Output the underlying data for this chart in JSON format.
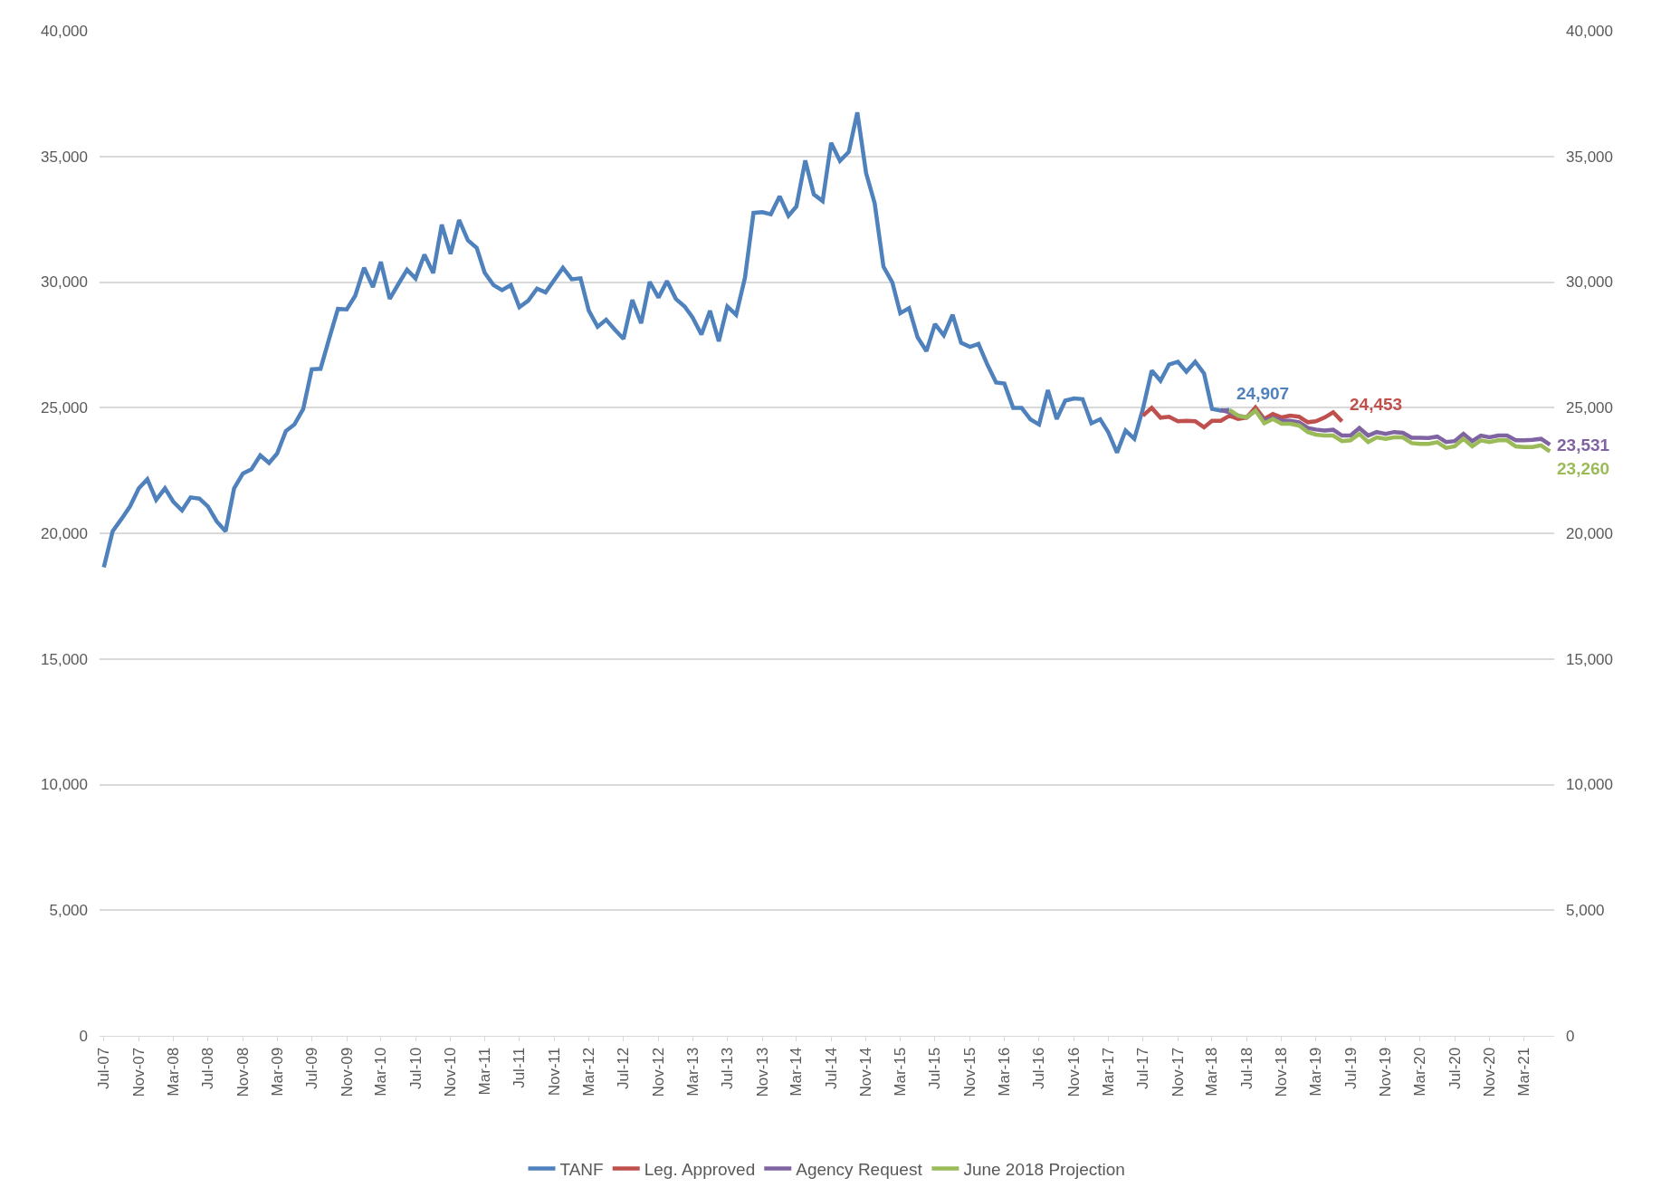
{
  "chart_data": {
    "type": "line",
    "x": [
      "2007-07",
      "2007-08",
      "2007-09",
      "2007-10",
      "2007-11",
      "2007-12",
      "2008-01",
      "2008-02",
      "2008-03",
      "2008-04",
      "2008-05",
      "2008-06",
      "2008-07",
      "2008-08",
      "2008-09",
      "2008-10",
      "2008-11",
      "2008-12",
      "2009-01",
      "2009-02",
      "2009-03",
      "2009-04",
      "2009-05",
      "2009-06",
      "2009-07",
      "2009-08",
      "2009-09",
      "2009-10",
      "2009-11",
      "2009-12",
      "2010-01",
      "2010-02",
      "2010-03",
      "2010-04",
      "2010-05",
      "2010-06",
      "2010-07",
      "2010-08",
      "2010-09",
      "2010-10",
      "2010-11",
      "2010-12",
      "2011-01",
      "2011-02",
      "2011-03",
      "2011-04",
      "2011-05",
      "2011-06",
      "2011-07",
      "2011-08",
      "2011-09",
      "2011-10",
      "2011-11",
      "2011-12",
      "2012-01",
      "2012-02",
      "2012-03",
      "2012-04",
      "2012-05",
      "2012-06",
      "2012-07",
      "2012-08",
      "2012-09",
      "2012-10",
      "2012-11",
      "2012-12",
      "2013-01",
      "2013-02",
      "2013-03",
      "2013-04",
      "2013-05",
      "2013-06",
      "2013-07",
      "2013-08",
      "2013-09",
      "2013-10",
      "2013-11",
      "2013-12",
      "2014-01",
      "2014-02",
      "2014-03",
      "2014-04",
      "2014-05",
      "2014-06",
      "2014-07",
      "2014-08",
      "2014-09",
      "2014-10",
      "2014-11",
      "2014-12",
      "2015-01",
      "2015-02",
      "2015-03",
      "2015-04",
      "2015-05",
      "2015-06",
      "2015-07",
      "2015-08",
      "2015-09",
      "2015-10",
      "2015-11",
      "2015-12",
      "2016-01",
      "2016-02",
      "2016-03",
      "2016-04",
      "2016-05",
      "2016-06",
      "2016-07",
      "2016-08",
      "2016-09",
      "2016-10",
      "2016-11",
      "2016-12",
      "2017-01",
      "2017-02",
      "2017-03",
      "2017-04",
      "2017-05",
      "2017-06",
      "2017-07",
      "2017-08",
      "2017-09",
      "2017-10",
      "2017-11",
      "2017-12",
      "2018-01",
      "2018-02",
      "2018-03",
      "2018-04",
      "2018-05",
      "2018-06",
      "2018-07",
      "2018-08",
      "2018-09",
      "2018-10",
      "2018-11",
      "2018-12",
      "2019-01",
      "2019-02",
      "2019-03",
      "2019-04",
      "2019-05",
      "2019-06",
      "2019-07",
      "2019-08",
      "2019-09",
      "2019-10",
      "2019-11",
      "2019-12",
      "2020-01",
      "2020-02",
      "2020-03",
      "2020-04",
      "2020-05",
      "2020-06",
      "2020-07",
      "2020-08",
      "2020-09",
      "2020-10",
      "2020-11",
      "2020-12",
      "2021-01",
      "2021-02",
      "2021-03",
      "2021-04",
      "2021-05",
      "2021-06"
    ],
    "series": [
      {
        "name": "TANF",
        "color": "#4f81bd",
        "values": [
          18650,
          20080,
          20570,
          21070,
          21790,
          22150,
          21330,
          21790,
          21260,
          20910,
          21430,
          21380,
          21070,
          20470,
          20080,
          21790,
          22380,
          22550,
          23100,
          22800,
          23170,
          24070,
          24330,
          24950,
          26530,
          26550,
          27780,
          28930,
          28910,
          29460,
          30570,
          29800,
          30800,
          29330,
          29910,
          30490,
          30140,
          31090,
          30360,
          32280,
          31120,
          32470,
          31660,
          31360,
          30370,
          29880,
          29680,
          29880,
          29000,
          29260,
          29740,
          29590,
          30090,
          30570,
          30110,
          30150,
          28860,
          28220,
          28500,
          28100,
          27740,
          29290,
          28360,
          30010,
          29380,
          30040,
          29330,
          29030,
          28590,
          27910,
          28860,
          27640,
          29030,
          28700,
          30170,
          32750,
          32780,
          32700,
          33410,
          32640,
          33010,
          34840,
          33490,
          33220,
          35540,
          34820,
          35180,
          36750,
          34330,
          33140,
          30610,
          29990,
          28760,
          28960,
          27800,
          27250,
          28330,
          27880,
          28700,
          27580,
          27420,
          27540,
          26720,
          26000,
          25960,
          24990,
          24990,
          24530,
          24330,
          25700,
          24550,
          25280,
          25370,
          25340,
          24380,
          24540,
          24030,
          23210,
          24090,
          23760,
          24950,
          26480,
          26070,
          26720,
          26830,
          26430,
          26830,
          26360,
          24950,
          24880,
          24907,
          null,
          null,
          null,
          null,
          null,
          null,
          null,
          null,
          null,
          null,
          null,
          null,
          null,
          null,
          null,
          null,
          null,
          null,
          null,
          null,
          null,
          null,
          null,
          null,
          null,
          null,
          null,
          null,
          null,
          null,
          null,
          null,
          null,
          null,
          null,
          null,
          null
        ]
      },
      {
        "name": "Leg. Approved",
        "color": "#c0504d",
        "values": [
          null,
          null,
          null,
          null,
          null,
          null,
          null,
          null,
          null,
          null,
          null,
          null,
          null,
          null,
          null,
          null,
          null,
          null,
          null,
          null,
          null,
          null,
          null,
          null,
          null,
          null,
          null,
          null,
          null,
          null,
          null,
          null,
          null,
          null,
          null,
          null,
          null,
          null,
          null,
          null,
          null,
          null,
          null,
          null,
          null,
          null,
          null,
          null,
          null,
          null,
          null,
          null,
          null,
          null,
          null,
          null,
          null,
          null,
          null,
          null,
          null,
          null,
          null,
          null,
          null,
          null,
          null,
          null,
          null,
          null,
          null,
          null,
          null,
          null,
          null,
          null,
          null,
          null,
          null,
          null,
          null,
          null,
          null,
          null,
          null,
          null,
          null,
          null,
          null,
          null,
          null,
          null,
          null,
          null,
          null,
          null,
          null,
          null,
          null,
          null,
          null,
          null,
          null,
          null,
          null,
          null,
          null,
          null,
          null,
          null,
          null,
          null,
          null,
          null,
          null,
          null,
          null,
          null,
          null,
          null,
          24680,
          24990,
          24600,
          24640,
          24460,
          24480,
          24460,
          24220,
          24480,
          24480,
          24680,
          24550,
          24610,
          25010,
          24550,
          24750,
          24610,
          24680,
          24640,
          24420,
          24460,
          24610,
          24820,
          24453,
          null,
          null,
          null,
          null,
          null,
          null,
          null,
          null,
          null,
          null,
          null,
          null,
          null,
          null,
          null,
          null,
          null,
          null,
          null,
          null,
          null,
          null,
          null,
          null
        ]
      },
      {
        "name": "Agency Request",
        "color": "#8064a2",
        "values": [
          null,
          null,
          null,
          null,
          null,
          null,
          null,
          null,
          null,
          null,
          null,
          null,
          null,
          null,
          null,
          null,
          null,
          null,
          null,
          null,
          null,
          null,
          null,
          null,
          null,
          null,
          null,
          null,
          null,
          null,
          null,
          null,
          null,
          null,
          null,
          null,
          null,
          null,
          null,
          null,
          null,
          null,
          null,
          null,
          null,
          null,
          null,
          null,
          null,
          null,
          null,
          null,
          null,
          null,
          null,
          null,
          null,
          null,
          null,
          null,
          null,
          null,
          null,
          null,
          null,
          null,
          null,
          null,
          null,
          null,
          null,
          null,
          null,
          null,
          null,
          null,
          null,
          null,
          null,
          null,
          null,
          null,
          null,
          null,
          null,
          null,
          null,
          null,
          null,
          null,
          null,
          null,
          null,
          null,
          null,
          null,
          null,
          null,
          null,
          null,
          null,
          null,
          null,
          null,
          null,
          null,
          null,
          null,
          null,
          null,
          null,
          null,
          null,
          null,
          null,
          null,
          null,
          null,
          null,
          null,
          null,
          null,
          null,
          null,
          null,
          null,
          null,
          null,
          null,
          24910,
          24820,
          24680,
          24610,
          24880,
          24480,
          24590,
          24480,
          24480,
          24420,
          24190,
          24130,
          24090,
          24120,
          23890,
          23890,
          24190,
          23890,
          24030,
          23960,
          24030,
          24000,
          23800,
          23800,
          23790,
          23850,
          23630,
          23670,
          23960,
          23670,
          23890,
          23820,
          23890,
          23890,
          23700,
          23700,
          23720,
          23760,
          23531
        ]
      },
      {
        "name": "June 2018 Projection",
        "color": "#9bbb59",
        "values": [
          null,
          null,
          null,
          null,
          null,
          null,
          null,
          null,
          null,
          null,
          null,
          null,
          null,
          null,
          null,
          null,
          null,
          null,
          null,
          null,
          null,
          null,
          null,
          null,
          null,
          null,
          null,
          null,
          null,
          null,
          null,
          null,
          null,
          null,
          null,
          null,
          null,
          null,
          null,
          null,
          null,
          null,
          null,
          null,
          null,
          null,
          null,
          null,
          null,
          null,
          null,
          null,
          null,
          null,
          null,
          null,
          null,
          null,
          null,
          null,
          null,
          null,
          null,
          null,
          null,
          null,
          null,
          null,
          null,
          null,
          null,
          null,
          null,
          null,
          null,
          null,
          null,
          null,
          null,
          null,
          null,
          null,
          null,
          null,
          null,
          null,
          null,
          null,
          null,
          null,
          null,
          null,
          null,
          null,
          null,
          null,
          null,
          null,
          null,
          null,
          null,
          null,
          null,
          null,
          null,
          null,
          null,
          null,
          null,
          null,
          null,
          null,
          null,
          null,
          null,
          null,
          null,
          null,
          null,
          null,
          null,
          null,
          null,
          null,
          null,
          null,
          null,
          null,
          null,
          null,
          24910,
          24680,
          24610,
          24880,
          24380,
          24550,
          24360,
          24360,
          24290,
          24030,
          23930,
          23890,
          23890,
          23670,
          23700,
          23960,
          23630,
          23820,
          23760,
          23820,
          23820,
          23590,
          23560,
          23560,
          23630,
          23400,
          23460,
          23760,
          23460,
          23700,
          23630,
          23700,
          23700,
          23460,
          23430,
          23430,
          23500,
          23260
        ]
      }
    ],
    "xlim": [
      "2007-06-16",
      "2021-06-16"
    ],
    "xticks": [
      {
        "value": "2007-07",
        "label": "Jul-07"
      },
      {
        "value": "2007-11",
        "label": "Nov-07"
      },
      {
        "value": "2008-03",
        "label": "Mar-08"
      },
      {
        "value": "2008-07",
        "label": "Jul-08"
      },
      {
        "value": "2008-11",
        "label": "Nov-08"
      },
      {
        "value": "2009-03",
        "label": "Mar-09"
      },
      {
        "value": "2009-07",
        "label": "Jul-09"
      },
      {
        "value": "2009-11",
        "label": "Nov-09"
      },
      {
        "value": "2010-03",
        "label": "Mar-10"
      },
      {
        "value": "2010-07",
        "label": "Jul-10"
      },
      {
        "value": "2010-11",
        "label": "Nov-10"
      },
      {
        "value": "2011-03",
        "label": "Mar-11"
      },
      {
        "value": "2011-07",
        "label": "Jul-11"
      },
      {
        "value": "2011-11",
        "label": "Nov-11"
      },
      {
        "value": "2012-03",
        "label": "Mar-12"
      },
      {
        "value": "2012-07",
        "label": "Jul-12"
      },
      {
        "value": "2012-11",
        "label": "Nov-12"
      },
      {
        "value": "2013-03",
        "label": "Mar-13"
      },
      {
        "value": "2013-07",
        "label": "Jul-13"
      },
      {
        "value": "2013-11",
        "label": "Nov-13"
      },
      {
        "value": "2014-03",
        "label": "Mar-14"
      },
      {
        "value": "2014-07",
        "label": "Jul-14"
      },
      {
        "value": "2014-11",
        "label": "Nov-14"
      },
      {
        "value": "2015-03",
        "label": "Mar-15"
      },
      {
        "value": "2015-07",
        "label": "Jul-15"
      },
      {
        "value": "2015-11",
        "label": "Nov-15"
      },
      {
        "value": "2016-03",
        "label": "Mar-16"
      },
      {
        "value": "2016-07",
        "label": "Jul-16"
      },
      {
        "value": "2016-11",
        "label": "Nov-16"
      },
      {
        "value": "2017-03",
        "label": "Mar-17"
      },
      {
        "value": "2017-07",
        "label": "Jul-17"
      },
      {
        "value": "2017-11",
        "label": "Nov-17"
      },
      {
        "value": "2018-03",
        "label": "Mar-18"
      },
      {
        "value": "2018-07",
        "label": "Jul-18"
      },
      {
        "value": "2018-11",
        "label": "Nov-18"
      },
      {
        "value": "2019-03",
        "label": "Mar-19"
      },
      {
        "value": "2019-07",
        "label": "Jul-19"
      },
      {
        "value": "2019-11",
        "label": "Nov-19"
      },
      {
        "value": "2020-03",
        "label": "Mar-20"
      },
      {
        "value": "2020-07",
        "label": "Jul-20"
      },
      {
        "value": "2020-11",
        "label": "Nov-20"
      },
      {
        "value": "2021-03",
        "label": "Mar-21"
      }
    ],
    "ylim": [
      0,
      40000
    ],
    "yticks": [
      0,
      {
        "value": 5000,
        "label": "5,000"
      },
      {
        "value": 10000,
        "label": "10,000"
      },
      {
        "value": 15000,
        "label": "15,000"
      },
      {
        "value": 20000,
        "label": "20,000"
      },
      {
        "value": 25000,
        "label": "25,000"
      },
      {
        "value": 30000,
        "label": "30,000"
      },
      {
        "value": 35000,
        "label": "35,000"
      },
      {
        "value": 40000,
        "label": "40,000"
      }
    ],
    "y2lim": [
      0,
      40000
    ],
    "y2ticks": [
      0,
      {
        "value": 5000,
        "label": "5,000"
      },
      {
        "value": 10000,
        "label": "10,000"
      },
      {
        "value": 15000,
        "label": "15,000"
      },
      {
        "value": 20000,
        "label": "20,000"
      },
      {
        "value": 25000,
        "label": "25,000"
      },
      {
        "value": 30000,
        "label": "30,000"
      },
      {
        "value": 35000,
        "label": "35,000"
      },
      {
        "value": 40000,
        "label": "40,000"
      }
    ],
    "annotations": [
      {
        "text": "24,907",
        "x": "2018-05",
        "y": 24907
      },
      {
        "text": "24,453",
        "x": "2019-06",
        "y": 24453
      },
      {
        "text": "23,531",
        "x": "2021-06",
        "y": 23531
      },
      {
        "text": "23,260",
        "x": "2021-06",
        "y": 23260
      }
    ],
    "grid": "y",
    "legend": "bottom",
    "marker": "none",
    "line_style": "solid"
  }
}
